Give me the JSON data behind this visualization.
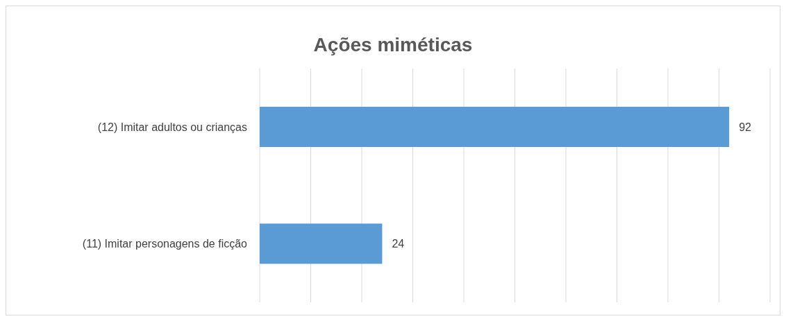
{
  "chart_data": {
    "type": "bar",
    "title": "Ações miméticas",
    "orientation": "horizontal",
    "categories": [
      "(12) Imitar adultos ou crianças",
      "(11) Imitar personagens de ficção"
    ],
    "values": [
      92,
      24
    ],
    "color": "#5b9bd5",
    "xlim": [
      0,
      100
    ],
    "xticks": [
      {
        "value": 0,
        "label": null
      },
      {
        "value": 10,
        "label": null
      },
      {
        "value": 20,
        "label": null
      },
      {
        "value": 30,
        "label": null
      },
      {
        "value": 40,
        "label": null
      },
      {
        "value": 50,
        "label": null
      },
      {
        "value": 60,
        "label": null
      },
      {
        "value": 70,
        "label": null
      },
      {
        "value": 80,
        "label": null
      },
      {
        "value": 90,
        "label": null
      },
      {
        "value": 100,
        "label": null
      }
    ],
    "grid": "x",
    "tick_labels": "y",
    "data_labels": true,
    "legend": false
  }
}
